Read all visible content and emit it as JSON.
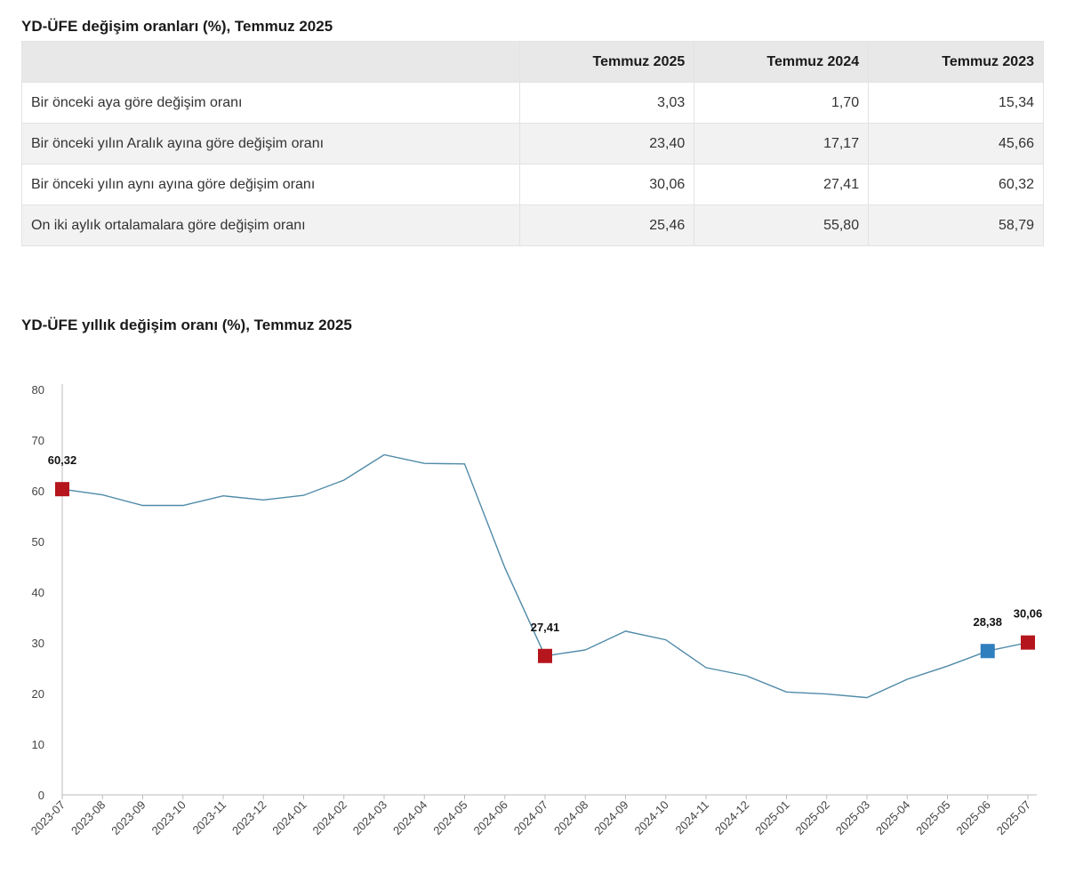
{
  "table": {
    "title": "YD-ÜFE değişim oranları (%), Temmuz 2025",
    "headers": [
      "",
      "Temmuz 2025",
      "Temmuz 2024",
      "Temmuz 2023"
    ],
    "rows": [
      {
        "label": "Bir önceki aya göre değişim oranı",
        "values": [
          "3,03",
          "1,70",
          "15,34"
        ]
      },
      {
        "label": "Bir önceki yılın Aralık ayına göre değişim oranı",
        "values": [
          "23,40",
          "17,17",
          "45,66"
        ]
      },
      {
        "label": "Bir önceki yılın aynı ayına göre değişim oranı",
        "values": [
          "30,06",
          "27,41",
          "60,32"
        ]
      },
      {
        "label": "On iki aylık ortalamalara göre değişim oranı",
        "values": [
          "25,46",
          "55,80",
          "58,79"
        ]
      }
    ]
  },
  "chart_data": {
    "type": "line",
    "title": "YD-ÜFE yıllık değişim oranı (%), Temmuz 2025",
    "xlabel": "",
    "ylabel": "",
    "ylim": [
      0,
      80
    ],
    "yticks": [
      "0",
      "10",
      "20",
      "30",
      "40",
      "50",
      "60",
      "70",
      "80"
    ],
    "grid": false,
    "legend": "none",
    "x": [
      "2023-07",
      "2023-08",
      "2023-09",
      "2023-10",
      "2023-11",
      "2023-12",
      "2024-01",
      "2024-02",
      "2024-03",
      "2024-04",
      "2024-05",
      "2024-06",
      "2024-07",
      "2024-08",
      "2024-09",
      "2024-10",
      "2024-11",
      "2024-12",
      "2025-01",
      "2025-02",
      "2025-03",
      "2025-04",
      "2025-05",
      "2025-06",
      "2025-07"
    ],
    "values": [
      60.32,
      59.2,
      57.1,
      57.1,
      59.0,
      58.2,
      59.1,
      62.1,
      67.1,
      65.4,
      65.3,
      44.8,
      27.41,
      28.6,
      32.3,
      30.6,
      25.1,
      23.5,
      20.3,
      19.9,
      19.2,
      22.8,
      25.4,
      28.38,
      30.06
    ],
    "highlighted_points": [
      {
        "index": 0,
        "label": "60,32",
        "color": "#b5151c"
      },
      {
        "index": 12,
        "label": "27,41",
        "color": "#b5151c"
      },
      {
        "index": 23,
        "label": "28,38",
        "color": "#2f7fbf"
      },
      {
        "index": 24,
        "label": "30,06",
        "color": "#b5151c"
      }
    ],
    "line_color": "#4f8aa8",
    "axis_color": "#bbbbbb"
  }
}
